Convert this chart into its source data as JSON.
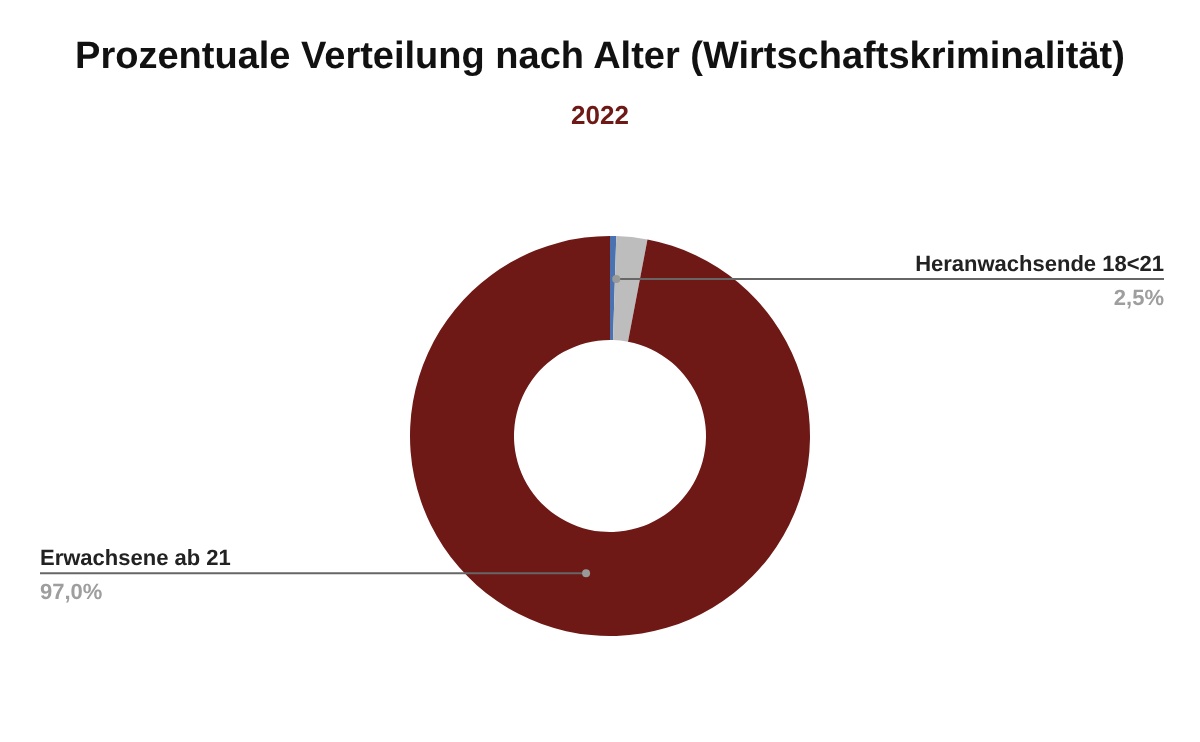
{
  "chart_data": {
    "type": "donut",
    "title": "Prozentuale Verteilung nach Alter (Wirtschaftskriminalität)",
    "subtitle": "2022",
    "categories": [
      null,
      "Heranwachsende 18<21",
      "Erwachsene ab 21"
    ],
    "values": [
      0.5,
      2.5,
      97.0
    ],
    "value_labels": [
      null,
      "2,5%",
      "97,0%"
    ],
    "colors": [
      "#4a72b0",
      "#bdbdbd",
      "#6e1916"
    ]
  }
}
